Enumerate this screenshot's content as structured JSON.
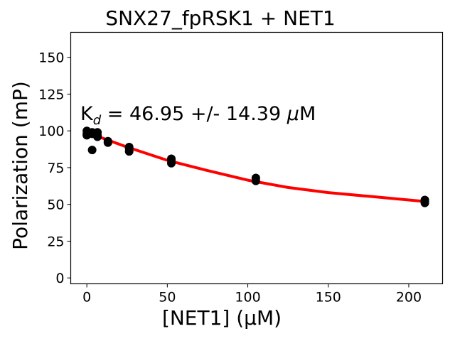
{
  "chart_data": {
    "type": "scatter",
    "title": "SNX27_fpRSK1 + NET1",
    "xlabel": "[NET1] (μM)",
    "ylabel": "Polarization (mP)",
    "xlim": [
      -10,
      221
    ],
    "ylim": [
      -4,
      167
    ],
    "xticks": [
      0,
      50,
      100,
      150,
      200
    ],
    "yticks": [
      0,
      25,
      50,
      75,
      100,
      125,
      150
    ],
    "grid": false,
    "annotation": {
      "prefix": "K",
      "subscript": "d",
      "text": " = 46.95 +/- 14.39 ",
      "unit_mu": "μ",
      "unit_rest": "M"
    },
    "points": {
      "name": "data",
      "color": "#000000",
      "x": [
        0,
        0,
        0,
        3.3,
        3.3,
        3.3,
        6.6,
        6.6,
        6.6,
        13.1,
        13.1,
        26.3,
        26.3,
        26.3,
        52.5,
        52.5,
        52.5,
        105,
        105,
        210,
        210,
        210
      ],
      "y": [
        100,
        98,
        97,
        99,
        98,
        87,
        99,
        97,
        96,
        93,
        92,
        89,
        88,
        86,
        81,
        80,
        78,
        68,
        66,
        53,
        52,
        51
      ]
    },
    "fit": {
      "name": "fit",
      "color": "#ff0000",
      "x": [
        0,
        10,
        25,
        50,
        75,
        100,
        125,
        150,
        175,
        200,
        210
      ],
      "y": [
        99,
        95,
        89,
        80,
        73,
        66.5,
        61.5,
        58,
        55.5,
        53,
        52
      ]
    }
  }
}
